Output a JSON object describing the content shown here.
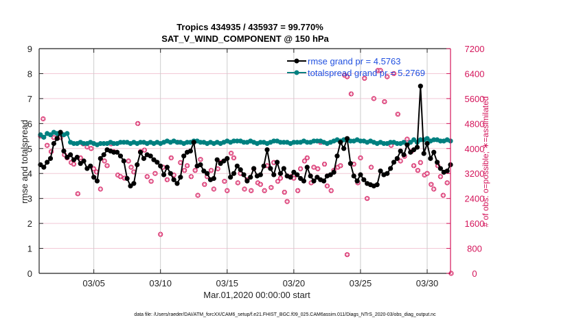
{
  "chart_data": {
    "type": "line",
    "title": [
      "Tropics 434935 / 435937 = 99.770%",
      "SAT_V_WIND_COMPONENT @ 150 hPa"
    ],
    "xlabel": "Mar.01,2020 00:00:00 start",
    "ylabel": "rmse and totalspread",
    "ylabel_right": "# of obs: o=possible; ∗=assimilated",
    "footer": "data file: /Users/raeder/DAI/ATM_forcXX/CAM6_setup/f.e21.FHIST_BGC.f09_025.CAM6assim.011/Diags_NTrS_2020-03/obs_diag_output.nc",
    "xlim_days": [
      0.9,
      31.75
    ],
    "ylim": [
      0,
      9
    ],
    "ylim_right": [
      0,
      7200
    ],
    "yticks": [
      "0",
      "1",
      "2",
      "3",
      "4",
      "5",
      "6",
      "7",
      "8",
      "9"
    ],
    "yticks_right": [
      "0",
      "800",
      "1600",
      "2400",
      "3200",
      "4000",
      "4800",
      "5600",
      "6400",
      "7200"
    ],
    "xticks": [
      {
        "day": 5,
        "label": "03/05"
      },
      {
        "day": 10,
        "label": "03/10"
      },
      {
        "day": 15,
        "label": "03/15"
      },
      {
        "day": 20,
        "label": "03/20"
      },
      {
        "day": 25,
        "label": "03/25"
      },
      {
        "day": 30,
        "label": "03/30"
      }
    ],
    "grid": true,
    "legend_position": "top-right",
    "colors": {
      "rmse": "#000000",
      "totalspread": "#008080",
      "obs": "#d4145a",
      "axis_right": "#d4145a",
      "legend_text": "#1f4fe0",
      "grid": "#cccccc",
      "grid_right": "#f2c8d6"
    },
    "series": [
      {
        "name": "rmse grand pr = 4.5763",
        "axis": "left",
        "x_start_day": 1.0,
        "step_days": 0.25,
        "values": [
          4.35,
          4.25,
          4.45,
          4.6,
          5.2,
          5.4,
          5.65,
          4.9,
          4.65,
          4.75,
          4.55,
          4.65,
          4.4,
          4.5,
          4.2,
          4.3,
          3.85,
          3.7,
          4.6,
          4.75,
          4.95,
          4.9,
          4.85,
          4.85,
          4.7,
          4.5,
          3.8,
          3.5,
          3.6,
          4.35,
          4.85,
          4.6,
          4.75,
          4.7,
          4.55,
          4.45,
          4.3,
          3.95,
          4.25,
          4.0,
          3.75,
          3.6,
          3.85,
          4.7,
          4.85,
          4.9,
          5.25,
          4.3,
          4.35,
          4.1,
          4.0,
          3.75,
          3.8,
          4.55,
          4.4,
          4.5,
          4.6,
          3.85,
          4.0,
          4.3,
          4.15,
          3.95,
          3.7,
          3.85,
          4.2,
          3.9,
          3.95,
          4.3,
          4.95,
          4.2,
          3.95,
          4.45,
          4.0,
          4.2,
          3.9,
          3.85,
          4.05,
          3.95,
          3.8,
          3.7,
          4.25,
          3.9,
          3.7,
          3.85,
          3.75,
          3.7,
          3.9,
          3.95,
          4.05,
          4.7,
          5.25,
          5.0,
          5.4,
          4.4,
          3.9,
          3.7,
          3.95,
          3.75,
          3.6,
          3.55,
          3.5,
          3.55,
          4.1,
          3.95,
          4.0,
          4.2,
          4.45,
          4.6,
          4.9,
          4.75,
          5.15,
          4.85,
          4.95,
          5.05,
          7.5,
          4.8,
          5.2,
          4.6,
          4.85,
          4.45,
          4.2,
          4.05,
          4.1,
          4.35,
          4.3,
          4.3,
          4.9,
          4.95,
          5.2,
          5.35,
          5.65,
          5.1,
          4.75,
          4.45,
          4.5,
          4.55,
          4.75,
          4.35,
          4.9,
          5.35,
          5.8,
          5.2,
          4.6,
          4.5,
          4.45,
          4.8,
          3.7,
          3.55,
          3.95,
          4.05,
          4.1,
          4.15,
          4.05,
          4.25,
          3.95,
          4.0,
          4.15,
          4.05,
          4.3,
          4.55,
          4.95,
          5.0,
          5.1,
          4.95,
          4.6,
          4.5
        ]
      },
      {
        "name": "totalspread grand pr = 5.2769",
        "axis": "left",
        "x_start_day": 1.0,
        "step_days": 0.25,
        "values": [
          5.55,
          5.45,
          5.6,
          5.55,
          5.65,
          5.6,
          5.6,
          5.55,
          5.6,
          5.25,
          5.2,
          5.2,
          5.25,
          5.2,
          5.2,
          5.25,
          5.2,
          5.15,
          5.2,
          5.2,
          5.2,
          5.25,
          5.2,
          5.2,
          5.25,
          5.25,
          5.25,
          5.2,
          5.25,
          5.2,
          5.25,
          5.25,
          5.2,
          5.25,
          5.2,
          5.25,
          5.2,
          5.25,
          5.3,
          5.25,
          5.3,
          5.25,
          5.25,
          5.2,
          5.25,
          5.25,
          5.3,
          5.3,
          5.25,
          5.25,
          5.2,
          5.25,
          5.2,
          5.25,
          5.2,
          5.25,
          5.3,
          5.25,
          5.3,
          5.3,
          5.3,
          5.25,
          5.25,
          5.3,
          5.25,
          5.2,
          5.25,
          5.25,
          5.2,
          5.25,
          5.3,
          5.3,
          5.25,
          5.25,
          5.25,
          5.2,
          5.25,
          5.25,
          5.25,
          5.3,
          5.25,
          5.25,
          5.3,
          5.3,
          5.3,
          5.25,
          5.2,
          5.25,
          5.3,
          5.35,
          5.3,
          5.35,
          5.35,
          5.3,
          5.3,
          5.35,
          5.3,
          5.3,
          5.25,
          5.3,
          5.25,
          5.2,
          5.25,
          5.2,
          5.2,
          5.25,
          5.25,
          5.2,
          5.2,
          5.25,
          5.15,
          5.25,
          5.35,
          5.25,
          5.35,
          5.35,
          5.4,
          5.3,
          5.35,
          5.35,
          5.3,
          5.3,
          5.35,
          5.3,
          5.3,
          5.3,
          5.25,
          5.35,
          5.4,
          5.35,
          5.3,
          5.35,
          5.35,
          5.3,
          5.3,
          5.3,
          5.3,
          5.25,
          5.25,
          5.3,
          5.3,
          5.3,
          5.25,
          5.3,
          5.25,
          5.25,
          5.25,
          5.25,
          5.25,
          5.25,
          5.2,
          5.25,
          5.25,
          5.2,
          5.25,
          5.2,
          5.25,
          5.25,
          5.25,
          5.2,
          5.25,
          5.3,
          5.3,
          5.3,
          5.25
        ]
      },
      {
        "name": "obs assimilated",
        "axis": "right",
        "marker": "asterisk-circle",
        "points": [
          [
            1.0,
            4400
          ],
          [
            1.2,
            4950
          ],
          [
            1.5,
            4100
          ],
          [
            1.8,
            3900
          ],
          [
            2.0,
            4350
          ],
          [
            2.3,
            4350
          ],
          [
            2.5,
            4350
          ],
          [
            2.8,
            3800
          ],
          [
            3.0,
            3700
          ],
          [
            3.3,
            3550
          ],
          [
            3.5,
            3500
          ],
          [
            3.8,
            2550
          ],
          [
            4.0,
            3700
          ],
          [
            4.2,
            4150
          ],
          [
            4.5,
            4050
          ],
          [
            4.8,
            4000
          ],
          [
            5.0,
            3350
          ],
          [
            5.2,
            3250
          ],
          [
            5.5,
            2700
          ],
          [
            5.8,
            3600
          ],
          [
            6.0,
            3450
          ],
          [
            6.3,
            4150
          ],
          [
            6.5,
            3900
          ],
          [
            6.8,
            3150
          ],
          [
            7.0,
            3100
          ],
          [
            7.3,
            3050
          ],
          [
            7.6,
            3600
          ],
          [
            7.8,
            3400
          ],
          [
            8.0,
            3250
          ],
          [
            8.3,
            4800
          ],
          [
            8.5,
            3900
          ],
          [
            8.8,
            3950
          ],
          [
            9.0,
            3100
          ],
          [
            9.3,
            2950
          ],
          [
            9.6,
            3200
          ],
          [
            10.0,
            1250
          ],
          [
            10.2,
            3400
          ],
          [
            10.5,
            3000
          ],
          [
            10.8,
            3700
          ],
          [
            11.0,
            3150
          ],
          [
            11.3,
            4200
          ],
          [
            11.5,
            3550
          ],
          [
            11.8,
            3300
          ],
          [
            12.0,
            3450
          ],
          [
            12.3,
            3100
          ],
          [
            12.6,
            3300
          ],
          [
            12.8,
            2500
          ],
          [
            13.0,
            3650
          ],
          [
            13.3,
            2850
          ],
          [
            13.5,
            3100
          ],
          [
            13.8,
            3300
          ],
          [
            14.0,
            2700
          ],
          [
            14.3,
            3350
          ],
          [
            14.5,
            3550
          ],
          [
            14.8,
            2950
          ],
          [
            15.0,
            2650
          ],
          [
            15.3,
            3850
          ],
          [
            15.5,
            3700
          ],
          [
            15.8,
            2900
          ],
          [
            16.0,
            3200
          ],
          [
            16.3,
            2700
          ],
          [
            16.5,
            3000
          ],
          [
            16.8,
            2650
          ],
          [
            17.0,
            3350
          ],
          [
            17.3,
            2900
          ],
          [
            17.5,
            2850
          ],
          [
            17.8,
            2650
          ],
          [
            18.0,
            3450
          ],
          [
            18.3,
            2750
          ],
          [
            18.5,
            3550
          ],
          [
            18.8,
            2950
          ],
          [
            19.0,
            3050
          ],
          [
            19.3,
            2600
          ],
          [
            19.5,
            2300
          ],
          [
            19.8,
            3100
          ],
          [
            20.0,
            3050
          ],
          [
            20.3,
            2650
          ],
          [
            20.5,
            3350
          ],
          [
            20.8,
            3600
          ],
          [
            21.0,
            3700
          ],
          [
            21.3,
            2900
          ],
          [
            21.5,
            3400
          ],
          [
            21.8,
            3350
          ],
          [
            22.0,
            4200
          ],
          [
            22.3,
            3500
          ],
          [
            22.5,
            2800
          ],
          [
            22.8,
            2650
          ],
          [
            23.0,
            3300
          ],
          [
            23.3,
            3400
          ],
          [
            23.5,
            3450
          ],
          [
            23.8,
            6350
          ],
          [
            24.0,
            6300
          ],
          [
            24.0,
            600
          ],
          [
            24.3,
            5750
          ],
          [
            24.5,
            3500
          ],
          [
            24.8,
            2900
          ],
          [
            25.0,
            3700
          ],
          [
            25.3,
            6250
          ],
          [
            25.5,
            2400
          ],
          [
            25.8,
            3400
          ],
          [
            26.0,
            5600
          ],
          [
            26.3,
            6500
          ],
          [
            26.5,
            6500
          ],
          [
            26.8,
            5500
          ],
          [
            27.0,
            6300
          ],
          [
            27.3,
            4100
          ],
          [
            27.5,
            6400
          ],
          [
            27.8,
            5100
          ],
          [
            28.0,
            3600
          ],
          [
            28.3,
            3750
          ],
          [
            28.5,
            4300
          ],
          [
            28.8,
            3900
          ],
          [
            29.0,
            3450
          ],
          [
            29.3,
            3300
          ],
          [
            29.5,
            3550
          ],
          [
            29.8,
            3150
          ],
          [
            30.0,
            3200
          ],
          [
            30.3,
            2850
          ],
          [
            30.5,
            2700
          ],
          [
            30.8,
            3450
          ],
          [
            31.0,
            3100
          ],
          [
            31.2,
            2500
          ],
          [
            31.5,
            2900
          ],
          [
            31.8,
            0
          ]
        ]
      }
    ]
  }
}
